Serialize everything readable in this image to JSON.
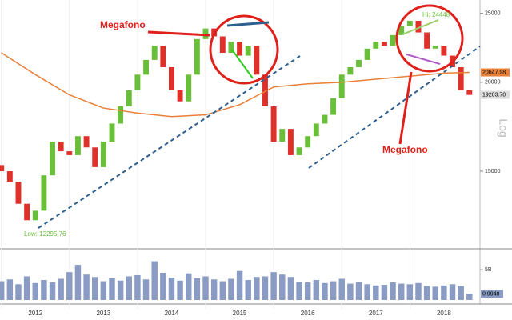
{
  "chart_data": {
    "type": "candlestick",
    "scale": "log",
    "x": [
      2012.0,
      2012.125,
      2012.25,
      2012.375,
      2012.5,
      2012.625,
      2012.75,
      2012.875,
      2013.0,
      2013.125,
      2013.25,
      2013.375,
      2013.5,
      2013.625,
      2013.75,
      2013.875,
      2014.0,
      2014.125,
      2014.25,
      2014.375,
      2014.5,
      2014.625,
      2014.75,
      2014.875,
      2015.0,
      2015.125,
      2015.25,
      2015.375,
      2015.5,
      2015.625,
      2015.75,
      2015.875,
      2016.0,
      2016.125,
      2016.25,
      2016.375,
      2016.5,
      2016.625,
      2016.75,
      2016.875,
      2017.0,
      2017.125,
      2017.25,
      2017.375,
      2017.5,
      2017.625,
      2017.75,
      2017.875,
      2018.0,
      2018.125,
      2018.25,
      2018.375,
      2018.5,
      2018.625,
      2018.75,
      2018.875
    ],
    "open": [
      15300,
      15000,
      14500,
      13500,
      12800,
      13200,
      14800,
      16500,
      16000,
      15800,
      16800,
      16200,
      15200,
      16500,
      17500,
      18500,
      19500,
      20500,
      21500,
      22500,
      21000,
      19500,
      18800,
      20500,
      23000,
      23800,
      23200,
      22000,
      22800,
      21800,
      22500,
      20500,
      18500,
      16500,
      17200,
      15800,
      16200,
      16800,
      17500,
      18000,
      19000,
      20500,
      21000,
      21500,
      22300,
      22800,
      22500,
      23300,
      24000,
      24400,
      23500,
      22300,
      22500,
      21800,
      21000,
      19500
    ],
    "close": [
      15000,
      14500,
      13500,
      12800,
      13200,
      14800,
      16500,
      16000,
      15800,
      16800,
      16200,
      15200,
      16500,
      17500,
      18500,
      19500,
      20500,
      21500,
      22500,
      21000,
      19500,
      18800,
      20500,
      23000,
      23800,
      23200,
      22000,
      22800,
      21800,
      22500,
      20500,
      18500,
      16500,
      17200,
      15800,
      16200,
      16800,
      17500,
      18000,
      19000,
      20500,
      21000,
      21500,
      22300,
      22800,
      22500,
      23300,
      24000,
      24400,
      23500,
      22300,
      22500,
      21800,
      21000,
      19500,
      19200
    ],
    "up_color": "#6abf3a",
    "down_color": "#e0302a",
    "overlays": [
      {
        "color": "#e8803a",
        "x": [
          2012.0,
          2012.5,
          2013.0,
          2013.5,
          2014.0,
          2014.5,
          2015.0,
          2015.5,
          2016.0,
          2016.5,
          2017.0,
          2017.5,
          2018.0,
          2018.5,
          2018.875
        ],
        "values": [
          22000,
          20500,
          19200,
          18400,
          18100,
          17900,
          18000,
          18600,
          19700,
          19900,
          20000,
          20200,
          20400,
          20600,
          20647.98
        ]
      }
    ],
    "xlim": [
      2011.98,
      2019.03
    ],
    "xticks": [
      {
        "value": 2012.5,
        "label": "2012"
      },
      {
        "value": 2013.5,
        "label": "2013"
      },
      {
        "value": 2014.5,
        "label": "2014"
      },
      {
        "value": 2015.5,
        "label": "2015"
      },
      {
        "value": 2016.5,
        "label": "2016"
      },
      {
        "value": 2017.5,
        "label": "2017"
      },
      {
        "value": 2018.5,
        "label": "2018"
      }
    ],
    "ylim": [
      11700,
      26100
    ],
    "yticks": [
      15000,
      20000,
      25000
    ],
    "last_value_labels": [
      {
        "value": 20647.98,
        "label": "20647.98"
      },
      {
        "value": 19203.7,
        "label": "19203.70"
      }
    ],
    "last_value_colors": [
      "#e8803a",
      "#dddddd"
    ],
    "axis_label": "Log",
    "annotations": [
      "Megafono",
      "Megafono"
    ],
    "low_label": "Low: 12295.76",
    "high_label": "Hi: 24448",
    "volume": {
      "values": [
        3.1,
        3.4,
        2.6,
        3.9,
        2.8,
        3.3,
        2.9,
        3.5,
        4.6,
        5.8,
        4.2,
        3.8,
        3.1,
        3.6,
        3.2,
        3.9,
        4.1,
        3.4,
        6.4,
        4.5,
        3.7,
        3.2,
        4.4,
        3.6,
        3.9,
        3.4,
        3.1,
        3.5,
        4.8,
        3.3,
        3.8,
        3.9,
        4.6,
        4.2,
        3.8,
        3.0,
        2.9,
        3.3,
        2.8,
        3.1,
        3.5,
        2.7,
        3.0,
        2.6,
        2.4,
        2.5,
        2.9,
        2.7,
        2.6,
        2.8,
        2.3,
        2.2,
        2.4,
        2.6,
        2.3,
        0.9948
      ],
      "ylim": [
        0,
        7
      ],
      "yticks": [
        {
          "value": 5,
          "label": "5B"
        }
      ],
      "color": "#8a9cc4"
    }
  }
}
